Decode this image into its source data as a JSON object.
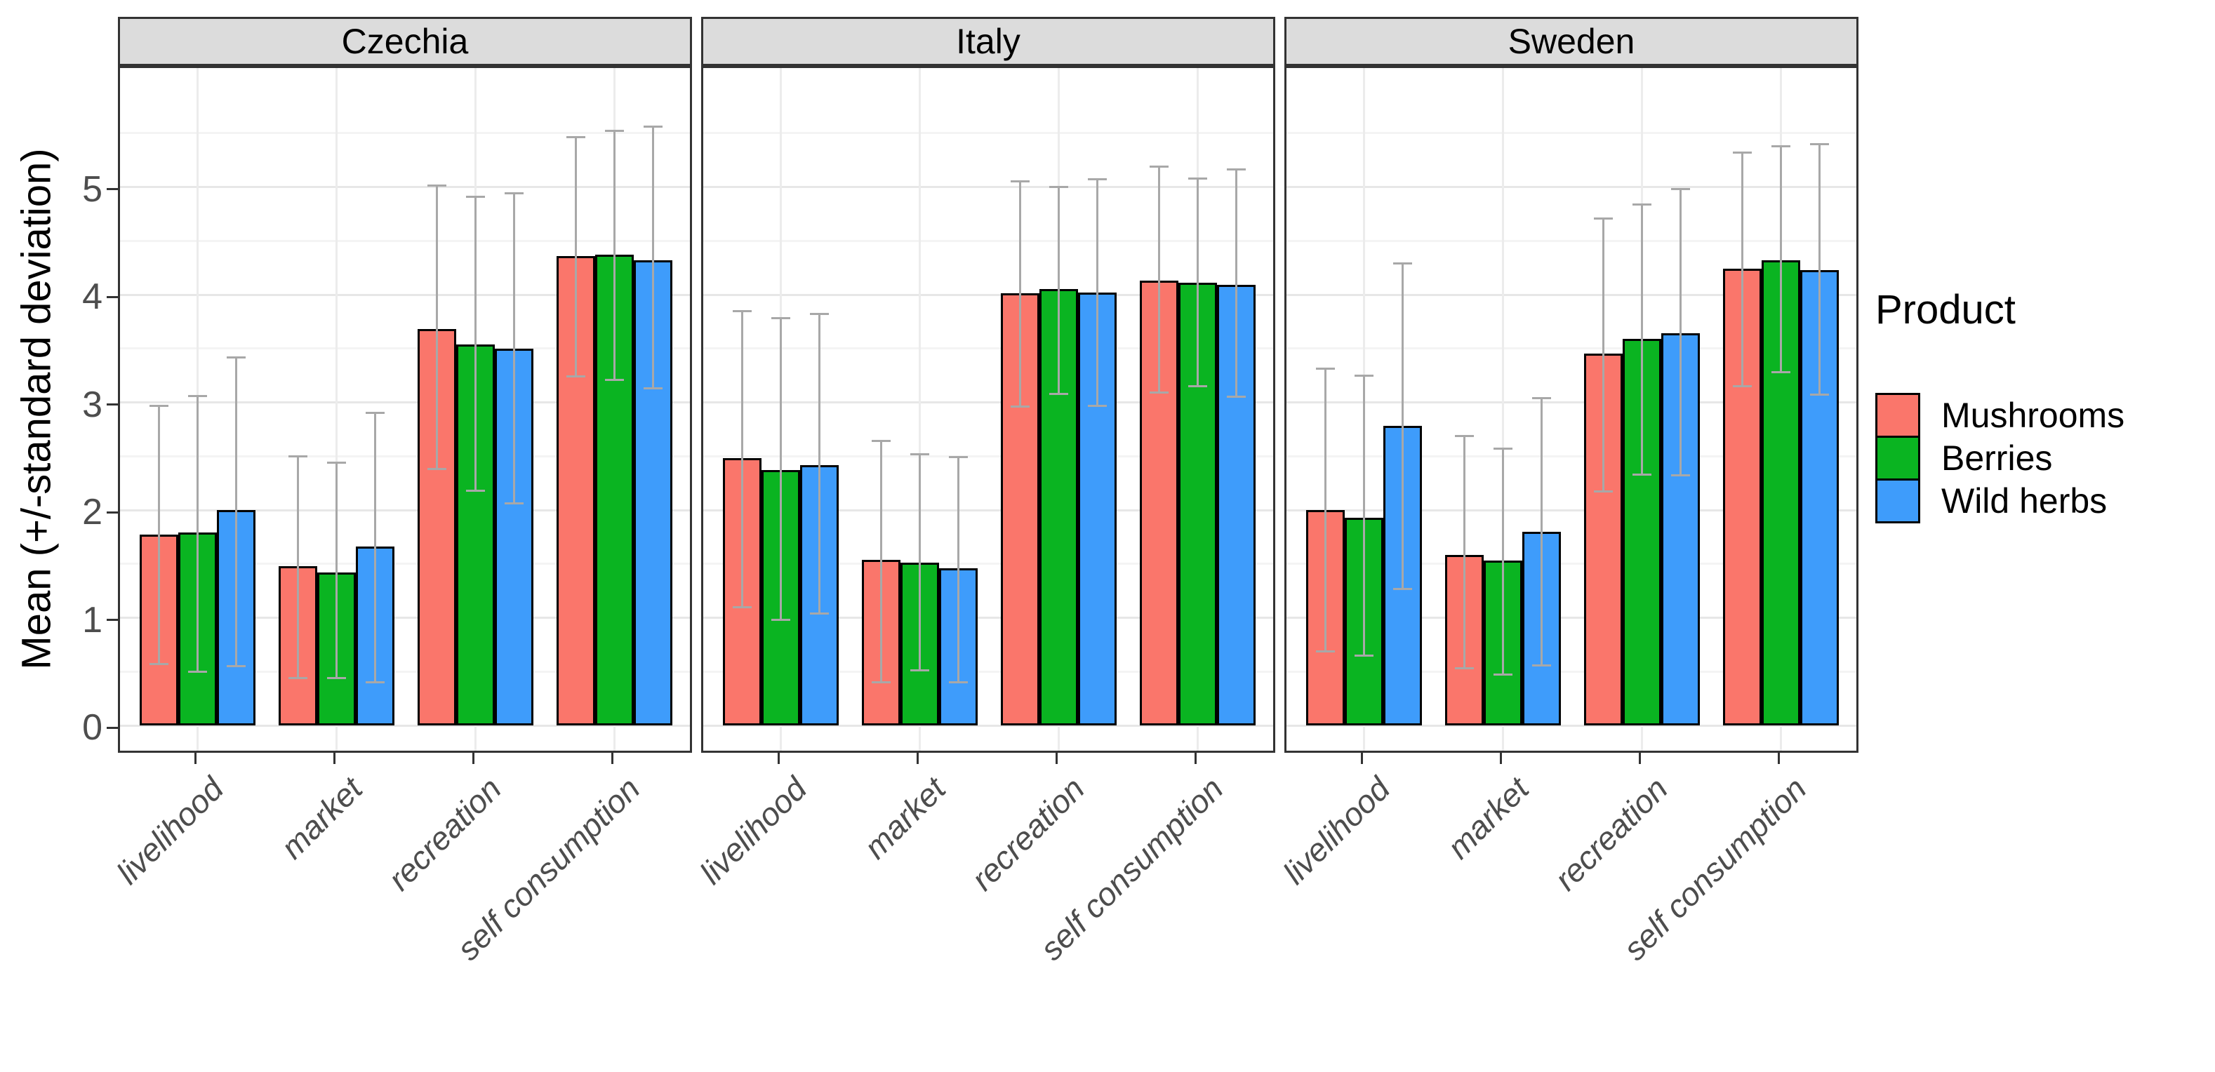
{
  "figure": {
    "background": "#FFFFFF"
  },
  "chart_data": {
    "type": "bar",
    "subtype": "grouped-faceted-bars-with-sd-error-bars",
    "title": "",
    "ylabel": "Mean (+/-standard deviation)",
    "xlabel": "",
    "y_ticks": [
      0,
      1,
      2,
      3,
      4,
      5
    ],
    "ylim": [
      0,
      6.1
    ],
    "grid": {
      "horizontal_major": [
        0,
        1,
        2,
        3,
        4,
        5
      ],
      "horizontal_minor": [
        0.5,
        1.5,
        2.5,
        3.5,
        4.5,
        5.5
      ],
      "vertical_major_at": "category-centers"
    },
    "categories": [
      "livelihood",
      "market",
      "recreation",
      "self consumption"
    ],
    "legend": {
      "title": "Product",
      "position": "right",
      "entries": [
        "Mushrooms",
        "Berries",
        "Wild herbs"
      ]
    },
    "series": [
      {
        "name": "Mushrooms",
        "color": "#FA766B"
      },
      {
        "name": "Berries",
        "color": "#0AB421"
      },
      {
        "name": "Wild herbs",
        "color": "#3E9CFB"
      }
    ],
    "error_bar_color": "#A8A8A8",
    "facets": [
      {
        "label": "Czechia",
        "series": [
          {
            "name": "Mushrooms",
            "means": [
              1.77,
              1.48,
              3.68,
              4.36
            ],
            "sd_low": [
              0.56,
              0.43,
              2.37,
              3.23
            ],
            "sd_high": [
              2.98,
              2.51,
              5.02,
              5.47
            ]
          },
          {
            "name": "Berries",
            "means": [
              1.79,
              1.42,
              3.54,
              4.37
            ],
            "sd_low": [
              0.49,
              0.43,
              2.17,
              3.2
            ],
            "sd_high": [
              3.07,
              2.45,
              4.92,
              5.53
            ]
          },
          {
            "name": "Wild herbs",
            "means": [
              2.0,
              1.66,
              3.5,
              4.32
            ],
            "sd_low": [
              0.54,
              0.39,
              2.05,
              3.12
            ],
            "sd_high": [
              3.43,
              2.91,
              4.95,
              5.57
            ]
          }
        ]
      },
      {
        "label": "Italy",
        "series": [
          {
            "name": "Mushrooms",
            "means": [
              2.48,
              1.54,
              4.01,
              4.13
            ],
            "sd_low": [
              1.09,
              0.39,
              2.95,
              3.08
            ],
            "sd_high": [
              3.86,
              2.65,
              5.06,
              5.2
            ]
          },
          {
            "name": "Berries",
            "means": [
              2.37,
              1.51,
              4.05,
              4.11
            ],
            "sd_low": [
              0.97,
              0.5,
              3.07,
              3.14
            ],
            "sd_high": [
              3.79,
              2.53,
              5.01,
              5.09
            ]
          },
          {
            "name": "Wild herbs",
            "means": [
              2.42,
              1.46,
              4.02,
              4.09
            ],
            "sd_low": [
              1.03,
              0.39,
              2.96,
              3.04
            ],
            "sd_high": [
              3.83,
              2.5,
              5.08,
              5.17
            ]
          }
        ]
      },
      {
        "label": "Sweden",
        "series": [
          {
            "name": "Mushrooms",
            "means": [
              2.0,
              1.58,
              3.45,
              4.24
            ],
            "sd_low": [
              0.68,
              0.52,
              2.16,
              3.14
            ],
            "sd_high": [
              3.32,
              2.7,
              4.72,
              5.33
            ]
          },
          {
            "name": "Berries",
            "means": [
              1.93,
              1.53,
              3.59,
              4.32
            ],
            "sd_low": [
              0.64,
              0.46,
              2.32,
              3.27
            ],
            "sd_high": [
              3.26,
              2.58,
              4.85,
              5.39
            ]
          },
          {
            "name": "Wild herbs",
            "means": [
              2.78,
              1.8,
              3.64,
              4.23
            ],
            "sd_low": [
              1.26,
              0.55,
              2.31,
              3.06
            ],
            "sd_high": [
              4.3,
              3.05,
              4.99,
              5.41
            ]
          }
        ]
      }
    ],
    "style": {
      "strip_background": "#DCDCDC",
      "panel_border": "#333333",
      "grid_major_color": "#E7E7E7",
      "grid_minor_color": "#F4F4F4",
      "vertical_grid_color": "#ECECEC",
      "tick_text_color": "#4D4D4D",
      "text_color": "#000000",
      "bar_border_color": "#000000"
    }
  }
}
